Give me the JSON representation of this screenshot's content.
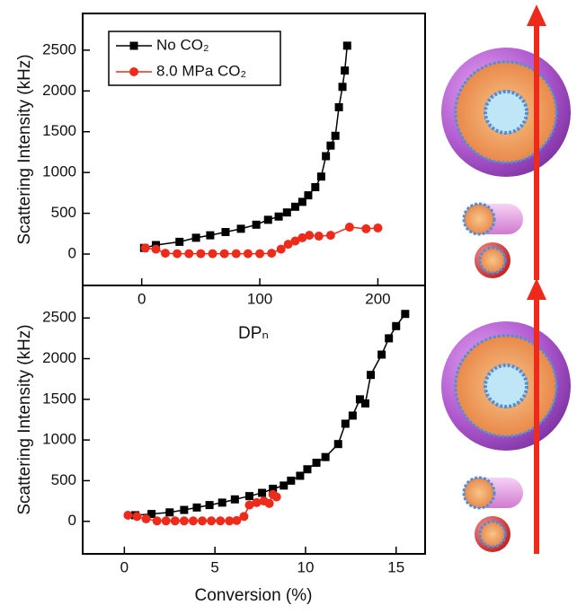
{
  "chart_data": [
    {
      "type": "line",
      "x_label": "DPₙ",
      "y_label": "Scattering Intensity (kHz)",
      "xlim": [
        -50,
        240
      ],
      "ylim": [
        -385,
        2950
      ],
      "xticks": [
        0,
        100,
        200
      ],
      "yticks": [
        0,
        500,
        1000,
        1500,
        2000,
        2500
      ],
      "legend": "upper left",
      "series": [
        {
          "name": "No CO₂",
          "color": "#000000",
          "marker": "square",
          "x": [
            2,
            12,
            32,
            46,
            58,
            71,
            84,
            97,
            107,
            116,
            123,
            130,
            136,
            141,
            147,
            152,
            156,
            160,
            164,
            167,
            170,
            172,
            174
          ],
          "values": [
            75,
            110,
            150,
            200,
            230,
            270,
            310,
            360,
            420,
            460,
            510,
            580,
            640,
            720,
            820,
            950,
            1200,
            1330,
            1450,
            1800,
            2050,
            2250,
            2555
          ]
        },
        {
          "name": "8.0 MPa CO₂",
          "color": "#ee2a1b",
          "marker": "circle",
          "x": [
            3,
            12,
            20,
            30,
            40,
            50,
            60,
            70,
            80,
            90,
            100,
            110,
            118,
            124,
            130,
            136,
            142,
            150,
            160,
            176,
            190,
            200
          ],
          "values": [
            75,
            60,
            10,
            5,
            5,
            5,
            5,
            5,
            5,
            5,
            5,
            10,
            60,
            120,
            160,
            200,
            230,
            220,
            230,
            330,
            310,
            320
          ]
        }
      ]
    },
    {
      "type": "line",
      "x_label": "Conversion (%)",
      "y_label": "Scattering Intensity (kHz)",
      "xlim": [
        -2.3,
        16.6
      ],
      "ylim": [
        -400,
        2900
      ],
      "xticks": [
        0,
        5,
        10,
        15
      ],
      "yticks": [
        0,
        500,
        1000,
        1500,
        2000,
        2500
      ],
      "series": [
        {
          "name": "No CO₂",
          "color": "#000000",
          "marker": "square",
          "x": [
            0.6,
            1.5,
            2.5,
            3.3,
            4.0,
            4.7,
            5.4,
            6.1,
            6.9,
            7.6,
            8.2,
            8.8,
            9.2,
            9.7,
            10.1,
            10.6,
            11.1,
            11.8,
            12.2,
            12.6,
            13.0,
            13.3,
            13.6,
            14.2,
            14.6,
            15.0,
            15.5
          ],
          "values": [
            75,
            90,
            110,
            140,
            170,
            200,
            230,
            270,
            310,
            350,
            400,
            440,
            500,
            560,
            640,
            720,
            790,
            950,
            1200,
            1300,
            1500,
            1450,
            1800,
            2050,
            2250,
            2400,
            2550
          ]
        },
        {
          "name": "8.0 MPa CO₂",
          "color": "#ee2a1b",
          "marker": "circle",
          "x": [
            0.2,
            0.7,
            1.2,
            1.8,
            2.3,
            2.8,
            3.3,
            3.8,
            4.3,
            4.8,
            5.3,
            5.8,
            6.2,
            6.6,
            6.9,
            7.3,
            7.7,
            8.0,
            8.2,
            8.4
          ],
          "values": [
            75,
            60,
            30,
            5,
            5,
            5,
            5,
            5,
            5,
            5,
            5,
            5,
            10,
            60,
            200,
            230,
            250,
            220,
            330,
            300
          ]
        }
      ]
    }
  ]
}
